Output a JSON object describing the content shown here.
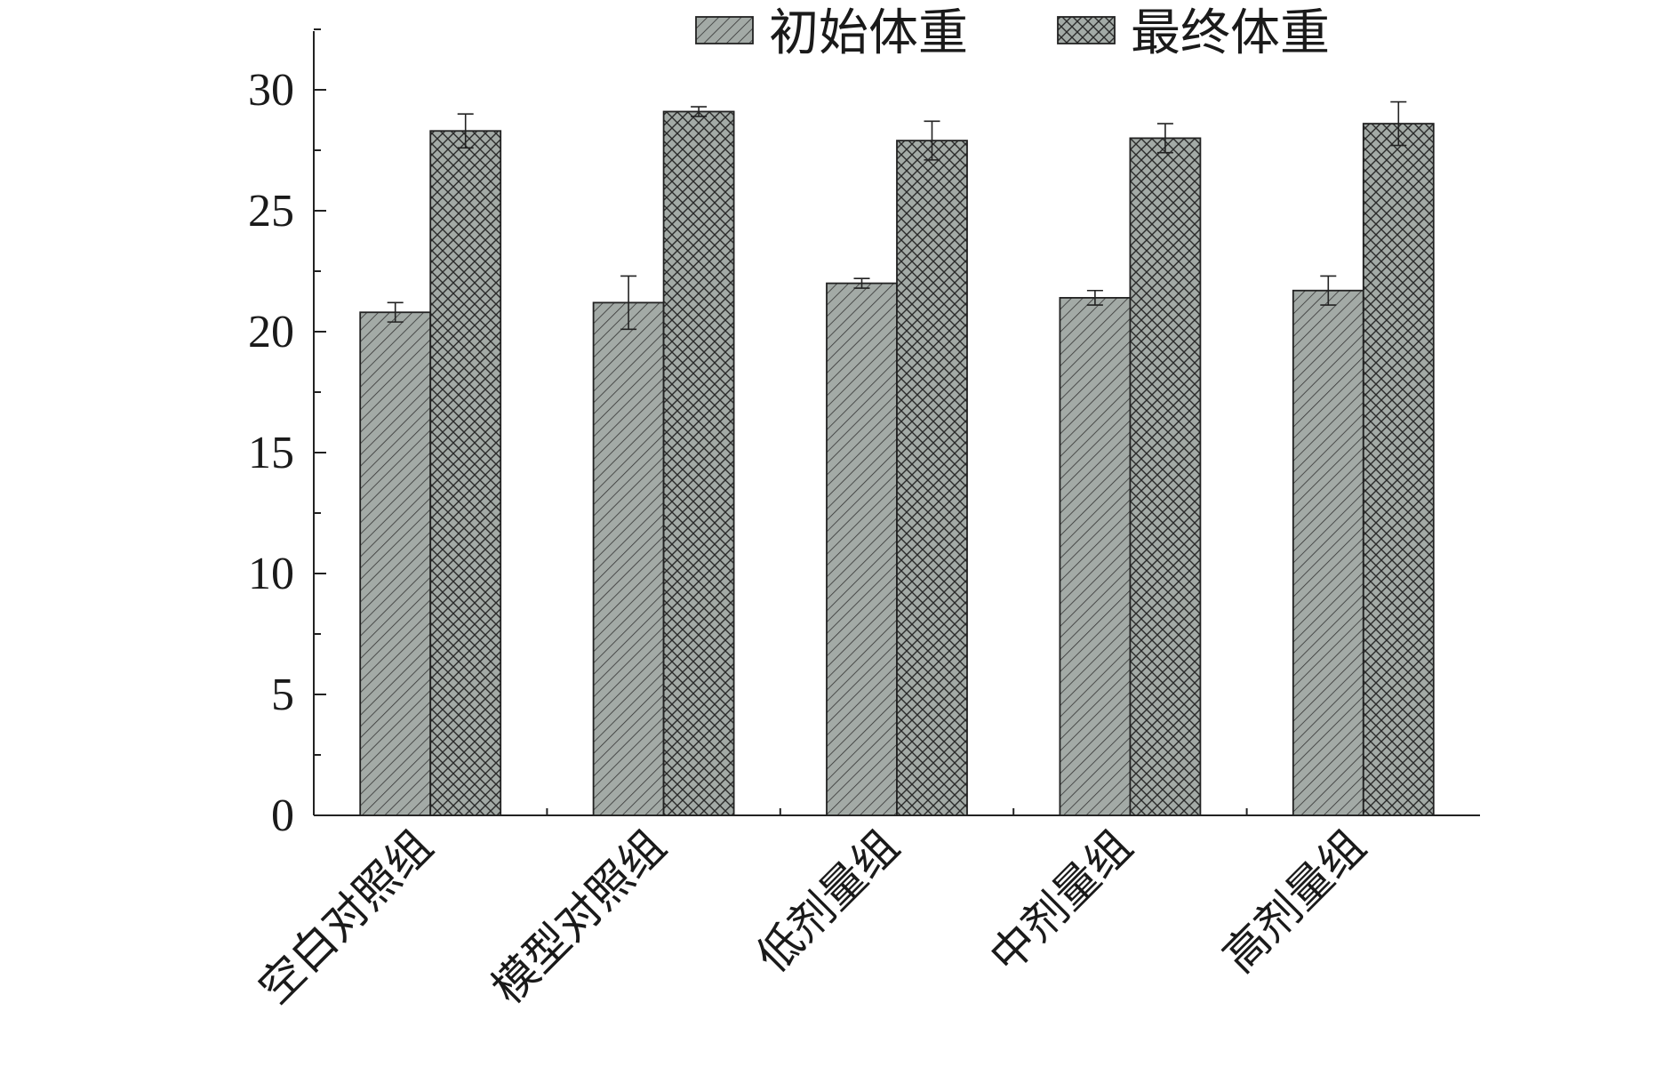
{
  "chart_data": {
    "type": "bar",
    "categories": [
      "空白对照组",
      "模型对照组",
      "低剂量组",
      "中剂量组",
      "高剂量组"
    ],
    "series": [
      {
        "name": "初始体重",
        "values": [
          20.8,
          21.2,
          22.0,
          21.4,
          21.7
        ],
        "errors": [
          0.4,
          1.1,
          0.2,
          0.3,
          0.6
        ]
      },
      {
        "name": "最终体重",
        "values": [
          28.3,
          29.1,
          27.9,
          28.0,
          28.6
        ],
        "errors": [
          0.7,
          0.2,
          0.8,
          0.6,
          0.9
        ]
      }
    ],
    "title": "",
    "xlabel": "",
    "ylabel": "",
    "ylim": [
      0,
      30
    ],
    "yticks": [
      "0",
      "5",
      "10",
      "15",
      "20",
      "25",
      "30"
    ],
    "grid": false,
    "legend_position": "top-right",
    "colors": {
      "bar_fill": "#a3aaa6",
      "hatch": "#3a3a3a",
      "outline": "#222222"
    }
  }
}
